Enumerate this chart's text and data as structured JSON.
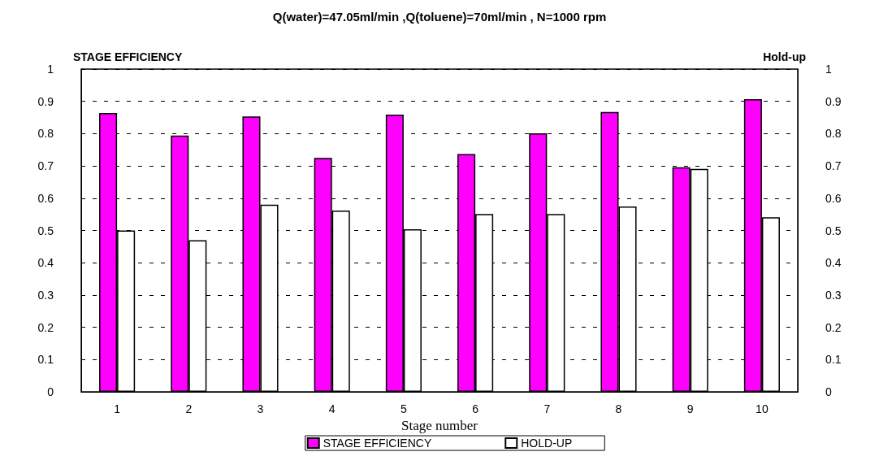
{
  "chart_data": {
    "type": "bar",
    "title": "Q(water)=47.05ml/min ,Q(toluene)=70ml/min , N=1000 rpm",
    "ylabel": "STAGE EFFICIENCY",
    "y2label": "Hold-up",
    "xlabel": "Stage number",
    "categories": [
      "1",
      "2",
      "3",
      "4",
      "5",
      "6",
      "7",
      "8",
      "9",
      "10"
    ],
    "series": [
      {
        "name": "STAGE EFFICIENCY",
        "color": "#ff00ff",
        "values": [
          0.864,
          0.794,
          0.853,
          0.725,
          0.859,
          0.737,
          0.801,
          0.867,
          0.696,
          0.907
        ]
      },
      {
        "name": "HOLD-UP",
        "color": "#ffffff",
        "values": [
          0.5,
          0.47,
          0.58,
          0.562,
          0.504,
          0.551,
          0.551,
          0.574,
          0.691,
          0.541
        ]
      }
    ],
    "ylim": [
      0,
      1
    ],
    "yticks": [
      0,
      0.1,
      0.2,
      0.3,
      0.4,
      0.5,
      0.6,
      0.7,
      0.8,
      0.9,
      1
    ],
    "y2lim": [
      0,
      1
    ],
    "y2ticks": [
      0,
      0.1,
      0.2,
      0.3,
      0.4,
      0.5,
      0.6,
      0.7,
      0.8,
      0.9,
      1
    ],
    "grid": "y",
    "legend": "bottom"
  }
}
